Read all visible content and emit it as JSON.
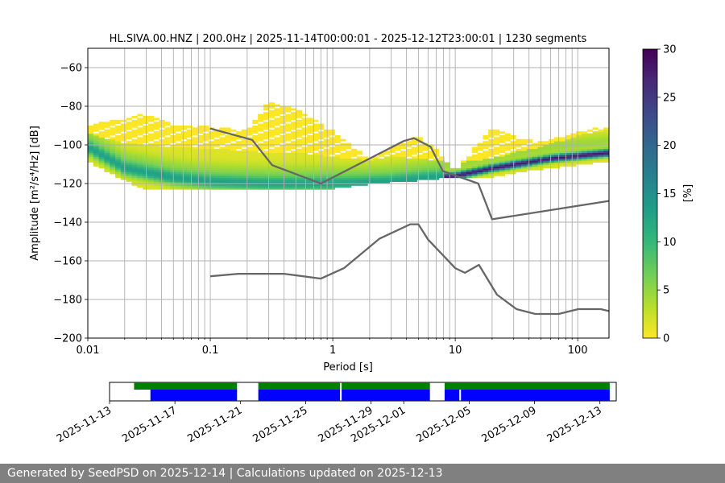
{
  "chart_data": {
    "type": "heatmap",
    "title": "HL.SIVA.00.HNZ | 200.0Hz | 2025-11-14T00:00:01 - 2025-12-12T23:00:01 | 1230 segments",
    "xlabel": "Period [s]",
    "ylabel": "Amplitude [m²/s⁴/Hz] [dB]",
    "x_scale": "log",
    "xlim": [
      0.01,
      180
    ],
    "ylim": [
      -200,
      -50
    ],
    "x_ticks": [
      {
        "value": 0.01,
        "label": "0.01"
      },
      {
        "value": 0.1,
        "label": "0.1"
      },
      {
        "value": 1,
        "label": "1"
      },
      {
        "value": 10,
        "label": "10"
      },
      {
        "value": 100,
        "label": "100"
      }
    ],
    "y_ticks": [
      {
        "value": -60,
        "label": "−60"
      },
      {
        "value": -80,
        "label": "−80"
      },
      {
        "value": -100,
        "label": "−100"
      },
      {
        "value": -120,
        "label": "−120"
      },
      {
        "value": -140,
        "label": "−140"
      },
      {
        "value": -160,
        "label": "−160"
      },
      {
        "value": -180,
        "label": "−180"
      },
      {
        "value": -200,
        "label": "−200"
      }
    ],
    "grid": true,
    "colorbar": {
      "label": "[%]",
      "range": [
        0,
        30
      ],
      "ticks": [
        {
          "value": 0,
          "label": "0"
        },
        {
          "value": 5,
          "label": "5"
        },
        {
          "value": 10,
          "label": "10"
        },
        {
          "value": 15,
          "label": "15"
        },
        {
          "value": 20,
          "label": "20"
        },
        {
          "value": 25,
          "label": "25"
        },
        {
          "value": 30,
          "label": "30"
        }
      ],
      "colormap": [
        "#fde725",
        "#b5de2b",
        "#6ece58",
        "#35b779",
        "#1f9e89",
        "#26828e",
        "#31688e",
        "#3e4989",
        "#482878",
        "#440154"
      ]
    },
    "mode_curve": {
      "name": "PDF mode",
      "points": [
        [
          0.01,
          -101
        ],
        [
          0.02,
          -112
        ],
        [
          0.05,
          -117
        ],
        [
          0.1,
          -119
        ],
        [
          0.3,
          -120
        ],
        [
          1,
          -120
        ],
        [
          3,
          -119
        ],
        [
          6,
          -117
        ],
        [
          10,
          -116
        ],
        [
          20,
          -112
        ],
        [
          60,
          -107
        ],
        [
          180,
          -104
        ]
      ]
    },
    "envelope": {
      "period": [
        0.01,
        0.02,
        0.03,
        0.05,
        0.1,
        0.2,
        0.3,
        0.5,
        1,
        2,
        3,
        5,
        7,
        10,
        20,
        30,
        50,
        100,
        180
      ],
      "lower": [
        -108,
        -118,
        -123,
        -123,
        -123,
        -123,
        -123,
        -123,
        -122,
        -120,
        -119,
        -118,
        -117,
        -117,
        -116,
        -114,
        -112,
        -110,
        -108
      ],
      "upper": [
        -90,
        -87,
        -84,
        -90,
        -91,
        -93,
        -78,
        -82,
        -93,
        -108,
        -102,
        -96,
        -103,
        -114,
        -91,
        -96,
        -99,
        -94,
        -90
      ],
      "core_upper": [
        -94,
        -99,
        -100,
        -101,
        -102,
        -103,
        -104,
        -104,
        -106,
        -108,
        -106,
        -107,
        -108,
        -109,
        -107,
        -104,
        -101,
        -95,
        -92
      ]
    },
    "noise_models": [
      {
        "name": "NHNM",
        "color": "#666666",
        "points": [
          [
            0.1,
            -91.5
          ],
          [
            0.22,
            -97.4
          ],
          [
            0.32,
            -110.5
          ],
          [
            0.8,
            -120
          ],
          [
            3.8,
            -98
          ],
          [
            4.6,
            -96.5
          ],
          [
            6.3,
            -101
          ],
          [
            7.9,
            -113.5
          ],
          [
            15.4,
            -120
          ],
          [
            20,
            -138.5
          ],
          [
            180,
            -129
          ]
        ]
      },
      {
        "name": "NLNM",
        "color": "#666666",
        "points": [
          [
            0.1,
            -168
          ],
          [
            0.17,
            -166.7
          ],
          [
            0.4,
            -166.7
          ],
          [
            0.8,
            -169.2
          ],
          [
            1.24,
            -163.7
          ],
          [
            2.4,
            -148.6
          ],
          [
            4.3,
            -141.1
          ],
          [
            5,
            -141.1
          ],
          [
            6,
            -149
          ],
          [
            10,
            -163.8
          ],
          [
            12,
            -166.2
          ],
          [
            15.6,
            -162.1
          ],
          [
            21.9,
            -177.5
          ],
          [
            31.6,
            -185
          ],
          [
            45,
            -187.5
          ],
          [
            70,
            -187.5
          ],
          [
            101,
            -185
          ],
          [
            154,
            -185
          ],
          [
            180,
            -186
          ]
        ]
      }
    ]
  },
  "timeline": {
    "start": "2025-11-13",
    "end": "2025-12-14",
    "tick_labels": [
      {
        "date": "2025-11-13",
        "label": "2025-11-13"
      },
      {
        "date": "2025-11-17",
        "label": "2025-11-17"
      },
      {
        "date": "2025-11-21",
        "label": "2025-11-21"
      },
      {
        "date": "2025-11-25",
        "label": "2025-11-25"
      },
      {
        "date": "2025-11-29",
        "label": "2025-11-29"
      },
      {
        "date": "2025-12-01",
        "label": "2025-12-01"
      },
      {
        "date": "2025-12-05",
        "label": "2025-12-05"
      },
      {
        "date": "2025-12-09",
        "label": "2025-12-09"
      },
      {
        "date": "2025-12-13",
        "label": "2025-12-13"
      }
    ],
    "data_segments": [
      [
        1.5,
        7.8
      ],
      [
        9.1,
        14.1
      ],
      [
        14.2,
        19.6
      ],
      [
        20.5,
        30.6
      ]
    ],
    "used_segments": [
      [
        2.5,
        7.8
      ],
      [
        9.1,
        14.1
      ],
      [
        14.2,
        19.6
      ],
      [
        20.5,
        21.4
      ],
      [
        21.5,
        30.6
      ]
    ],
    "data_color": "#008000",
    "used_color": "#0000ff"
  },
  "footer": {
    "text": "Generated by SeedPSD on 2025-12-14 | Calculations updated on 2025-12-13"
  }
}
